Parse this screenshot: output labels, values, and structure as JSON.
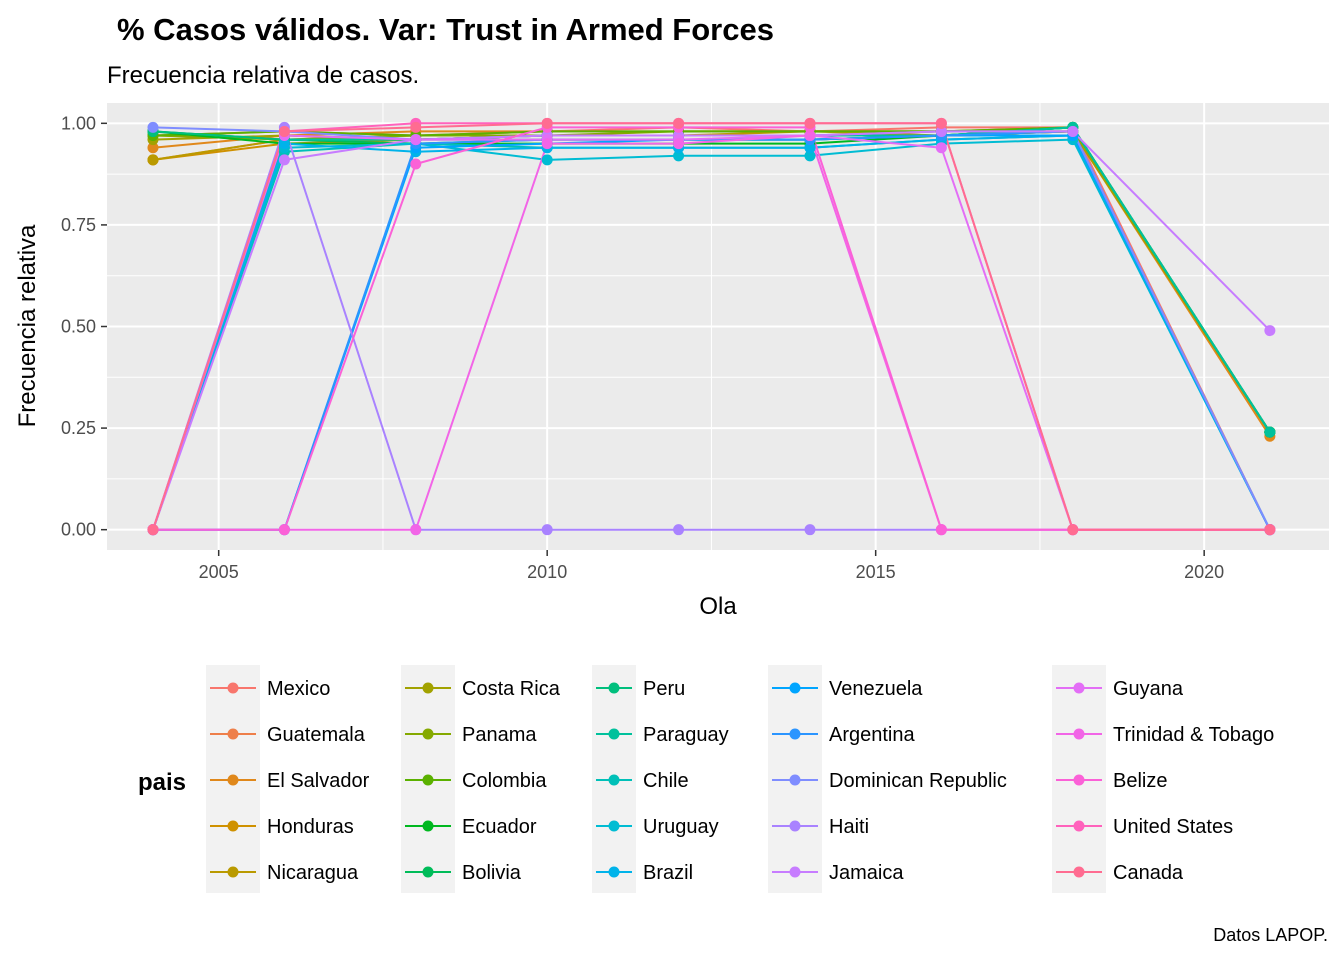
{
  "title": "% Casos válidos. Var: Trust in Armed Forces",
  "subtitle": "Frecuencia relativa de casos.",
  "caption": "Datos LAPOP.",
  "legend_title": "pais",
  "chart_data": {
    "type": "line",
    "xlabel": "Ola",
    "ylabel": "Frecuencia relativa",
    "xlim": [
      2003.3,
      2021.9
    ],
    "ylim": [
      -0.05,
      1.05
    ],
    "x_ticks": [
      2005,
      2010,
      2015,
      2020
    ],
    "x_tick_labels": [
      "2005",
      "2010",
      "2015",
      "2020"
    ],
    "y_ticks": [
      0,
      0.25,
      0.5,
      0.75,
      1.0
    ],
    "y_tick_labels": [
      "0.00",
      "0.25",
      "0.50",
      "0.75",
      "1.00"
    ],
    "grid": true,
    "legend_position": "bottom",
    "x": [
      2004,
      2006,
      2008,
      2010,
      2012,
      2014,
      2016,
      2018,
      2021
    ],
    "series": [
      {
        "name": "Mexico",
        "color": "#F8766D",
        "values": [
          0.97,
          0.98,
          0.97,
          0.98,
          0.99,
          0.98,
          0.99,
          0.99,
          0.0
        ]
      },
      {
        "name": "Guatemala",
        "color": "#EE7F4A",
        "values": [
          0.91,
          0.96,
          0.97,
          0.97,
          0.97,
          0.97,
          0.98,
          0.98,
          0.24
        ]
      },
      {
        "name": "El Salvador",
        "color": "#E0881B",
        "values": [
          0.94,
          0.97,
          0.98,
          0.98,
          0.98,
          0.98,
          0.98,
          0.98,
          0.23
        ]
      },
      {
        "name": "Honduras",
        "color": "#CF9100",
        "values": [
          0.91,
          0.95,
          0.96,
          0.97,
          0.97,
          0.97,
          0.97,
          0.98,
          0.24
        ]
      },
      {
        "name": "Nicaragua",
        "color": "#BA9A00",
        "values": [
          0.91,
          0.96,
          0.96,
          0.97,
          0.97,
          0.98,
          0.97,
          0.98,
          0.24
        ]
      },
      {
        "name": "Costa Rica",
        "color": "#A2A200",
        "values": [
          0.96,
          0.97,
          0.96,
          0.97,
          0.97,
          0.97,
          0.97,
          0.98,
          0.24
        ]
      },
      {
        "name": "Panama",
        "color": "#85A900",
        "values": [
          0.97,
          0.96,
          0.97,
          0.97,
          0.98,
          0.98,
          0.98,
          0.99,
          0.24
        ]
      },
      {
        "name": "Colombia",
        "color": "#5BB100",
        "values": [
          0.97,
          0.98,
          0.97,
          0.98,
          0.98,
          0.98,
          0.98,
          0.99,
          0.24
        ]
      },
      {
        "name": "Ecuador",
        "color": "#00B81F",
        "values": [
          0.98,
          0.95,
          0.95,
          0.95,
          0.95,
          0.95,
          0.97,
          0.99,
          0.24
        ]
      },
      {
        "name": "Bolivia",
        "color": "#00BC59",
        "values": [
          0.98,
          0.96,
          0.95,
          0.96,
          0.96,
          0.96,
          0.97,
          0.99,
          0.24
        ]
      },
      {
        "name": "Peru",
        "color": "#00BF7D",
        "values": [
          0.98,
          0.96,
          0.96,
          0.96,
          0.96,
          0.96,
          0.97,
          0.99,
          0.24
        ]
      },
      {
        "name": "Paraguay",
        "color": "#00C19C",
        "values": [
          0.0,
          0.96,
          0.96,
          0.97,
          0.97,
          0.97,
          0.97,
          0.99,
          0.24
        ]
      },
      {
        "name": "Chile",
        "color": "#00C0B8",
        "values": [
          0.0,
          0.93,
          0.95,
          0.94,
          0.94,
          0.94,
          0.96,
          0.97,
          0.0
        ]
      },
      {
        "name": "Uruguay",
        "color": "#00BCD3",
        "values": [
          0.0,
          0.94,
          0.95,
          0.91,
          0.92,
          0.92,
          0.95,
          0.96,
          0.0
        ]
      },
      {
        "name": "Brazil",
        "color": "#00B3EA",
        "values": [
          0.0,
          0.95,
          0.93,
          0.94,
          0.94,
          0.94,
          0.96,
          0.97,
          0.0
        ]
      },
      {
        "name": "Venezuela",
        "color": "#00A5FF",
        "values": [
          0.0,
          0.0,
          0.94,
          0.95,
          0.96,
          0.96,
          0.97,
          0.97,
          0.0
        ]
      },
      {
        "name": "Argentina",
        "color": "#2B95FF",
        "values": [
          0.0,
          0.0,
          0.95,
          0.96,
          0.96,
          0.96,
          0.97,
          0.98,
          0.0
        ]
      },
      {
        "name": "Dominican Republic",
        "color": "#7F8DFF",
        "values": [
          0.99,
          0.98,
          0.96,
          0.97,
          0.97,
          0.97,
          0.98,
          0.98,
          0.0
        ]
      },
      {
        "name": "Haiti",
        "color": "#A982FF",
        "values": [
          0.0,
          0.99,
          0.0,
          0.0,
          0.0,
          0.0,
          0.0,
          0.0,
          0.0
        ]
      },
      {
        "name": "Jamaica",
        "color": "#C77CFF",
        "values": [
          0.0,
          0.91,
          0.96,
          0.97,
          0.97,
          0.97,
          0.98,
          0.98,
          0.49
        ]
      },
      {
        "name": "Guyana",
        "color": "#E36EF6",
        "values": [
          0.0,
          0.97,
          0.96,
          0.96,
          0.96,
          0.97,
          0.94,
          0.0,
          0.0
        ]
      },
      {
        "name": "Trinidad & Tobago",
        "color": "#F265E7",
        "values": [
          0.0,
          0.0,
          0.0,
          0.95,
          0.95,
          0.97,
          0.0,
          0.0,
          0.0
        ]
      },
      {
        "name": "Belize",
        "color": "#FB61D7",
        "values": [
          0.0,
          0.0,
          0.9,
          0.99,
          0.99,
          0.99,
          0.0,
          0.0,
          0.0
        ]
      },
      {
        "name": "United States",
        "color": "#FF62BC",
        "values": [
          0.0,
          0.98,
          1.0,
          1.0,
          1.0,
          1.0,
          1.0,
          0.0,
          0.0
        ]
      },
      {
        "name": "Canada",
        "color": "#FF6C91",
        "values": [
          0.0,
          0.98,
          0.99,
          1.0,
          1.0,
          1.0,
          1.0,
          0.0,
          0.0
        ]
      }
    ]
  }
}
